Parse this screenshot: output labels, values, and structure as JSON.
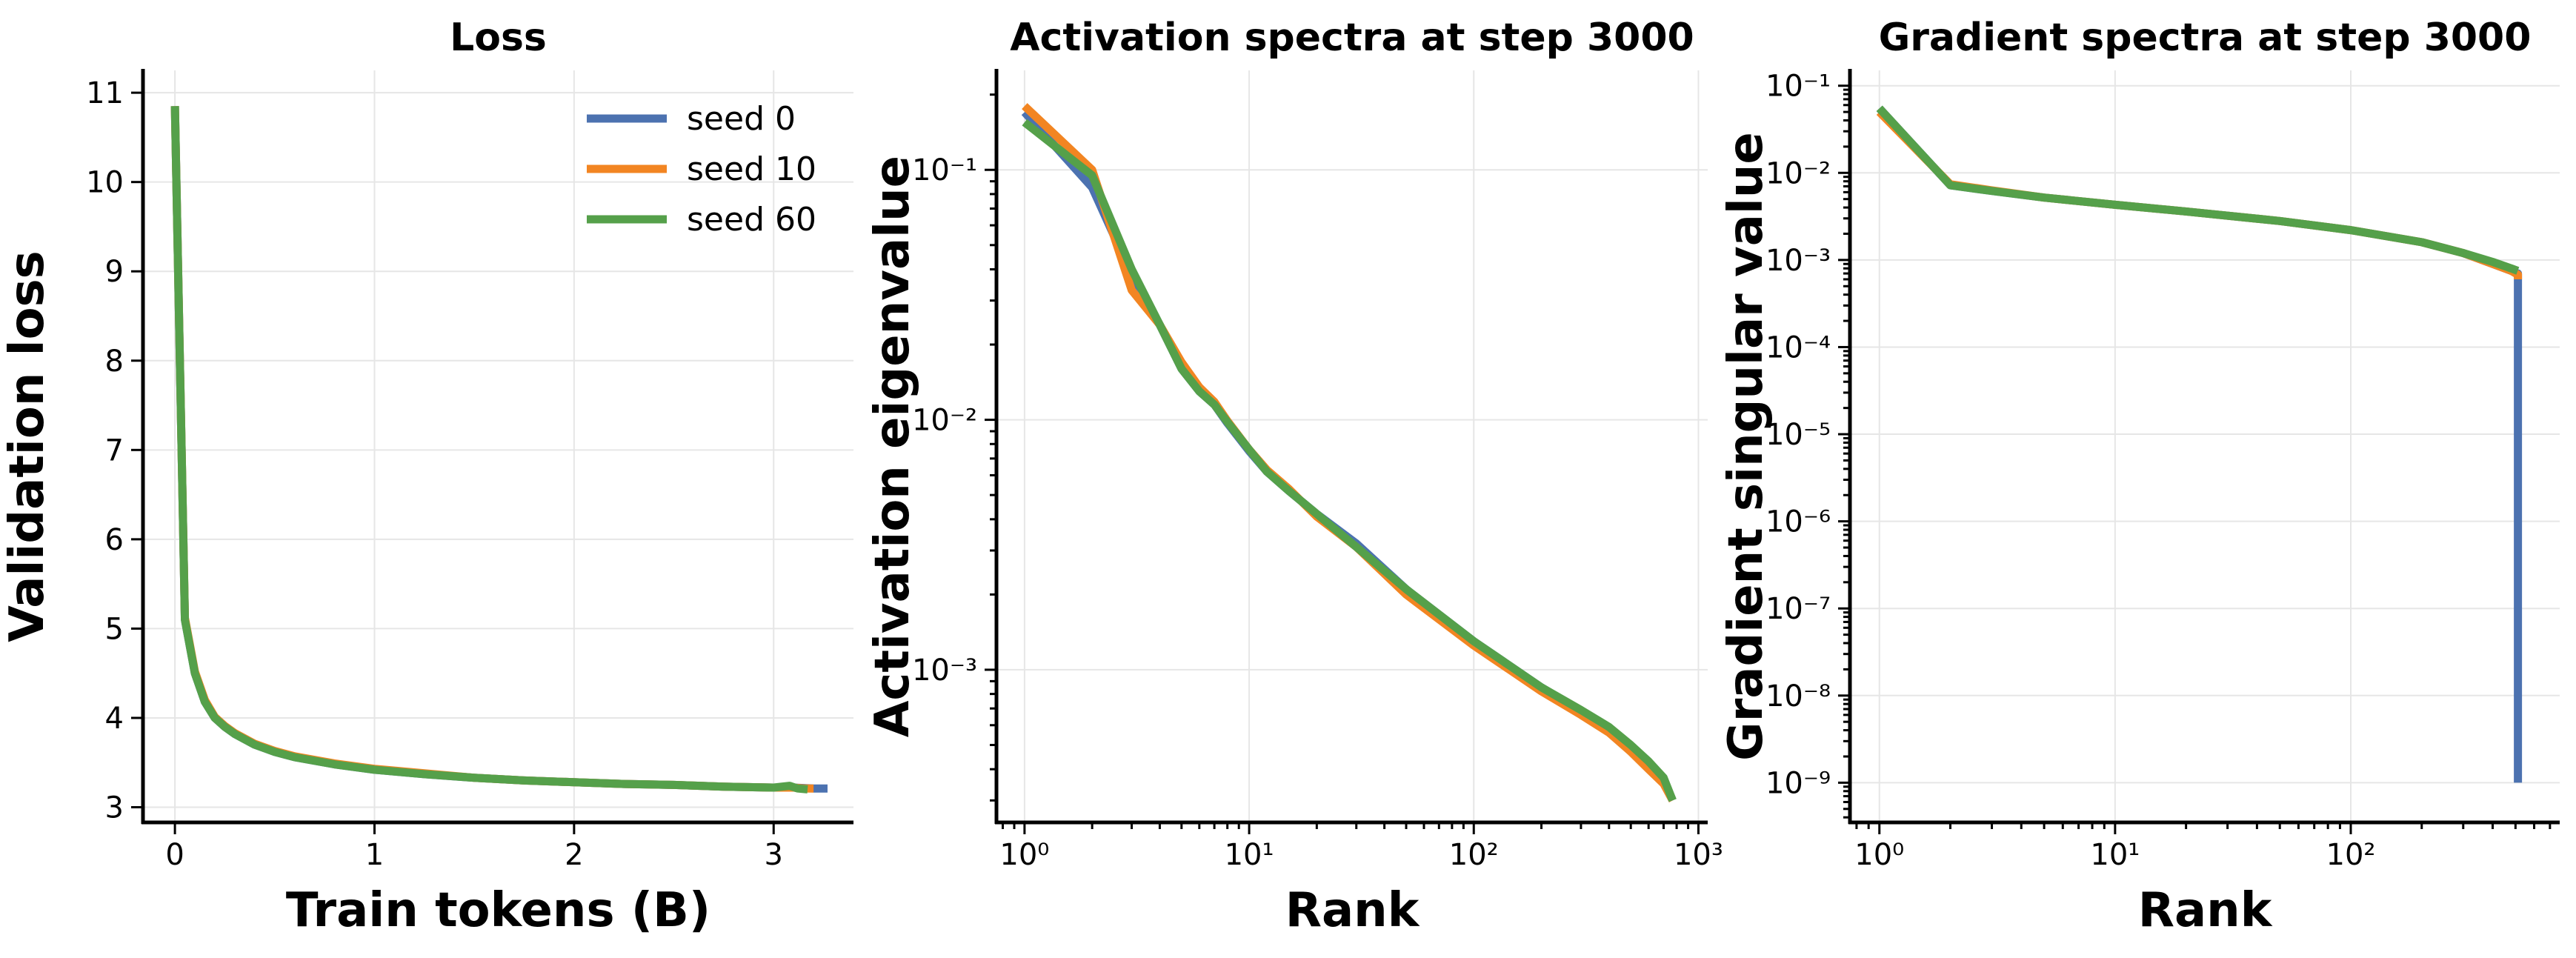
{
  "chart_data": [
    {
      "type": "line",
      "title": "Loss",
      "xlabel": "Train tokens (B)",
      "ylabel": "Validation loss",
      "xscale": "linear",
      "yscale": "linear",
      "xlim": [
        -0.16,
        3.4
      ],
      "ylim": [
        2.83,
        11.25
      ],
      "xticks": [
        {
          "v": 0,
          "label": "0"
        },
        {
          "v": 1,
          "label": "1"
        },
        {
          "v": 2,
          "label": "2"
        },
        {
          "v": 3,
          "label": "3"
        }
      ],
      "yticks": [
        {
          "v": 3,
          "label": "3"
        },
        {
          "v": 4,
          "label": "4"
        },
        {
          "v": 5,
          "label": "5"
        },
        {
          "v": 6,
          "label": "6"
        },
        {
          "v": 7,
          "label": "7"
        },
        {
          "v": 8,
          "label": "8"
        },
        {
          "v": 9,
          "label": "9"
        },
        {
          "v": 10,
          "label": "10"
        },
        {
          "v": 11,
          "label": "11"
        }
      ],
      "grid": true,
      "legend": "top-right",
      "series": [
        {
          "name": "seed 0",
          "color": "#4c72b0",
          "x": [
            0,
            0.05,
            0.1,
            0.15,
            0.2,
            0.25,
            0.3,
            0.4,
            0.5,
            0.6,
            0.8,
            1.0,
            1.25,
            1.5,
            1.75,
            2.0,
            2.25,
            2.5,
            2.75,
            3.0,
            3.1,
            3.2,
            3.27
          ],
          "y": [
            10.85,
            5.1,
            4.5,
            4.18,
            4.0,
            3.9,
            3.82,
            3.7,
            3.62,
            3.56,
            3.48,
            3.42,
            3.37,
            3.33,
            3.3,
            3.28,
            3.26,
            3.25,
            3.23,
            3.22,
            3.22,
            3.21,
            3.21
          ]
        },
        {
          "name": "seed 10",
          "color": "#f28522",
          "x": [
            0,
            0.05,
            0.1,
            0.15,
            0.2,
            0.25,
            0.3,
            0.4,
            0.5,
            0.6,
            0.8,
            1.0,
            1.25,
            1.5,
            1.75,
            2.0,
            2.25,
            2.5,
            2.75,
            3.0,
            3.1,
            3.15,
            3.2
          ],
          "y": [
            10.85,
            5.12,
            4.52,
            4.2,
            4.01,
            3.91,
            3.83,
            3.71,
            3.63,
            3.57,
            3.49,
            3.43,
            3.38,
            3.33,
            3.3,
            3.28,
            3.26,
            3.25,
            3.23,
            3.22,
            3.22,
            3.21,
            3.21
          ]
        },
        {
          "name": "seed 60",
          "color": "#55a04a",
          "x": [
            0,
            0.05,
            0.1,
            0.15,
            0.2,
            0.25,
            0.3,
            0.4,
            0.5,
            0.6,
            0.8,
            1.0,
            1.25,
            1.5,
            1.75,
            2.0,
            2.25,
            2.5,
            2.75,
            3.0,
            3.08,
            3.12,
            3.17
          ],
          "y": [
            10.85,
            5.1,
            4.5,
            4.18,
            4.0,
            3.9,
            3.82,
            3.7,
            3.62,
            3.56,
            3.48,
            3.42,
            3.37,
            3.33,
            3.3,
            3.28,
            3.26,
            3.25,
            3.23,
            3.22,
            3.24,
            3.21,
            3.2
          ]
        }
      ]
    },
    {
      "type": "line",
      "title": "Activation spectra at step 3000",
      "xlabel": "Rank",
      "ylabel": "Activation eigenvalue",
      "xscale": "log",
      "yscale": "log",
      "xlim": [
        0.75,
        1100
      ],
      "ylim": [
        0.000245,
        0.25
      ],
      "xticks": [
        {
          "v": 1,
          "label": "10⁰"
        },
        {
          "v": 10,
          "label": "10¹"
        },
        {
          "v": 100,
          "label": "10²"
        },
        {
          "v": 1000,
          "label": "10³"
        }
      ],
      "yticks": [
        {
          "v": 0.001,
          "label": "10⁻³"
        },
        {
          "v": 0.01,
          "label": "10⁻²"
        },
        {
          "v": 0.1,
          "label": "10⁻¹"
        }
      ],
      "grid": true,
      "series": [
        {
          "name": "seed 0",
          "color": "#4c72b0",
          "x": [
            1,
            2,
            3,
            4,
            5,
            6,
            7,
            8,
            10,
            12,
            15,
            20,
            30,
            50,
            100,
            200,
            300,
            400,
            500,
            600,
            700,
            768
          ],
          "y": [
            0.17,
            0.085,
            0.038,
            0.024,
            0.016,
            0.013,
            0.0115,
            0.0097,
            0.0075,
            0.0062,
            0.0052,
            0.0042,
            0.0032,
            0.0021,
            0.0013,
            0.00085,
            0.00068,
            0.00058,
            0.00049,
            0.00042,
            0.00036,
            0.0003
          ]
        },
        {
          "name": "seed 10",
          "color": "#f28522",
          "x": [
            1,
            2,
            3,
            4,
            5,
            6,
            7,
            8,
            10,
            12,
            15,
            20,
            30,
            50,
            100,
            200,
            300,
            400,
            500,
            600,
            700,
            768
          ],
          "y": [
            0.18,
            0.1,
            0.033,
            0.024,
            0.017,
            0.0135,
            0.0118,
            0.0099,
            0.0076,
            0.0063,
            0.0053,
            0.0041,
            0.0031,
            0.002,
            0.00125,
            0.00082,
            0.00066,
            0.00056,
            0.00047,
            0.0004,
            0.00035,
            0.0003
          ]
        },
        {
          "name": "seed 60",
          "color": "#55a04a",
          "x": [
            1,
            2,
            3,
            4,
            5,
            6,
            7,
            8,
            10,
            12,
            15,
            20,
            30,
            50,
            100,
            200,
            300,
            400,
            500,
            600,
            700,
            768
          ],
          "y": [
            0.155,
            0.095,
            0.04,
            0.024,
            0.016,
            0.013,
            0.0115,
            0.0098,
            0.0076,
            0.0062,
            0.0052,
            0.0042,
            0.0031,
            0.0021,
            0.0013,
            0.00085,
            0.00069,
            0.00059,
            0.0005,
            0.00043,
            0.00037,
            0.0003
          ]
        }
      ]
    },
    {
      "type": "line",
      "title": "Gradient spectra at step 3000",
      "xlabel": "Rank",
      "ylabel": "Gradient singular value",
      "xscale": "log",
      "yscale": "log",
      "xlim": [
        0.75,
        770
      ],
      "ylim": [
        3.5e-10,
        0.15
      ],
      "xticks": [
        {
          "v": 1,
          "label": "10⁰"
        },
        {
          "v": 10,
          "label": "10¹"
        },
        {
          "v": 100,
          "label": "10²"
        }
      ],
      "yticks": [
        {
          "v": 1e-09,
          "label": "10⁻⁹"
        },
        {
          "v": 1e-08,
          "label": "10⁻⁸"
        },
        {
          "v": 1e-07,
          "label": "10⁻⁷"
        },
        {
          "v": 1e-06,
          "label": "10⁻⁶"
        },
        {
          "v": 1e-05,
          "label": "10⁻⁵"
        },
        {
          "v": 0.0001,
          "label": "10⁻⁴"
        },
        {
          "v": 0.001,
          "label": "10⁻³"
        },
        {
          "v": 0.01,
          "label": "10⁻²"
        },
        {
          "v": 0.1,
          "label": "10⁻¹"
        }
      ],
      "grid": true,
      "series": [
        {
          "name": "seed 0",
          "color": "#4c72b0",
          "x": [
            1,
            2,
            3,
            5,
            10,
            20,
            50,
            100,
            200,
            300,
            400,
            480,
            511,
            512,
            512
          ],
          "y": [
            0.055,
            0.0072,
            0.0062,
            0.0052,
            0.0043,
            0.0036,
            0.0028,
            0.0022,
            0.0016,
            0.0012,
            0.0009,
            0.00075,
            0.0007,
            0.0007,
            1e-09
          ]
        },
        {
          "name": "seed 10",
          "color": "#f28522",
          "x": [
            1,
            2,
            3,
            5,
            10,
            20,
            50,
            100,
            200,
            300,
            400,
            480,
            511,
            512,
            512
          ],
          "y": [
            0.05,
            0.0074,
            0.0063,
            0.0052,
            0.0043,
            0.0036,
            0.0028,
            0.0022,
            0.0016,
            0.0012,
            0.0009,
            0.00075,
            0.00068,
            0.00068,
            0.0006
          ]
        },
        {
          "name": "seed 60",
          "color": "#55a04a",
          "x": [
            1,
            2,
            3,
            5,
            10,
            20,
            50,
            100,
            200,
            300,
            400,
            480,
            511
          ],
          "y": [
            0.055,
            0.0072,
            0.0062,
            0.0052,
            0.0043,
            0.0036,
            0.0028,
            0.0022,
            0.0016,
            0.0012,
            0.00095,
            0.0008,
            0.00075
          ]
        }
      ]
    }
  ]
}
